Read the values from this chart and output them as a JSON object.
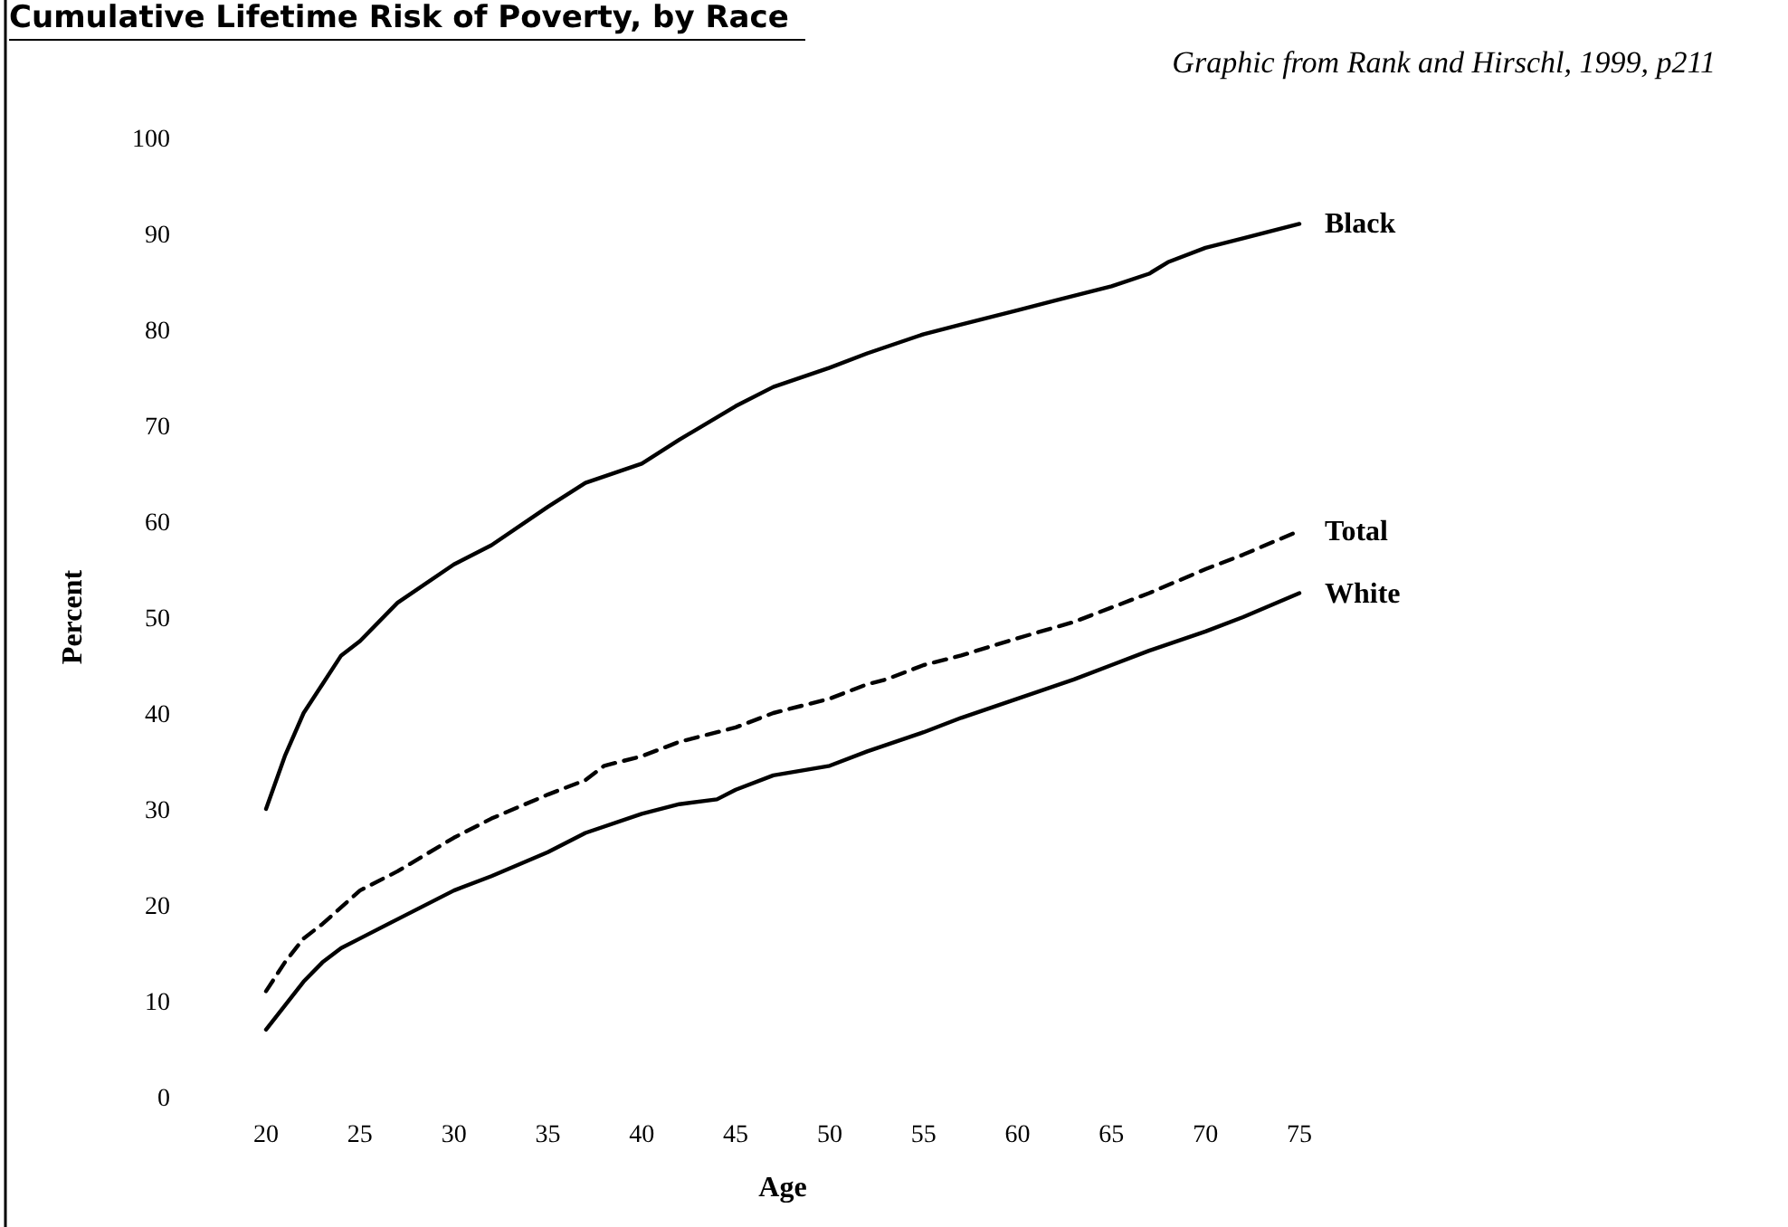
{
  "chart_data": {
    "type": "line",
    "title": "Cumulative Lifetime Risk of Poverty, by Race",
    "xlabel": "Age",
    "ylabel": "Percent",
    "annotations": [
      "Graphic from Rank and Hirschl, 1999, p211"
    ],
    "xlim": [
      20,
      75
    ],
    "xticks": [
      20,
      25,
      30,
      35,
      40,
      45,
      50,
      55,
      60,
      65,
      70,
      75
    ],
    "ylim": [
      0,
      100
    ],
    "yticks": [
      0,
      10,
      20,
      30,
      40,
      50,
      60,
      70,
      80,
      90,
      100
    ],
    "grid": false,
    "legend": false,
    "series": [
      {
        "name": "Black",
        "color": "#000000",
        "line_style": "solid",
        "x": [
          20,
          21,
          22,
          23,
          24,
          25,
          27,
          30,
          32,
          35,
          37,
          40,
          42,
          45,
          47,
          50,
          52,
          55,
          57,
          60,
          62,
          65,
          67,
          68,
          70,
          72,
          75
        ],
        "values": [
          30,
          35.5,
          40,
          43,
          46,
          47.5,
          51.5,
          55.5,
          57.5,
          61.5,
          64,
          66,
          68.5,
          72,
          74,
          76,
          77.5,
          79.5,
          80.5,
          82,
          83,
          84.5,
          85.8,
          87,
          88.5,
          89.5,
          91
        ]
      },
      {
        "name": "Total",
        "color": "#000000",
        "line_style": "dashed",
        "x": [
          20,
          21,
          22,
          23,
          25,
          27,
          30,
          32,
          35,
          37,
          38,
          40,
          42,
          45,
          47,
          50,
          52,
          53,
          55,
          57,
          60,
          63,
          65,
          67,
          70,
          72,
          75
        ],
        "values": [
          11,
          14,
          16.5,
          18,
          21.5,
          23.5,
          27,
          29,
          31.5,
          33,
          34.5,
          35.5,
          37,
          38.5,
          40,
          41.5,
          43,
          43.5,
          45,
          46,
          47.8,
          49.5,
          51,
          52.5,
          55,
          56.5,
          59
        ]
      },
      {
        "name": "White",
        "color": "#000000",
        "line_style": "solid",
        "x": [
          20,
          21,
          22,
          23,
          24,
          25,
          27,
          30,
          32,
          35,
          37,
          40,
          42,
          44,
          45,
          47,
          50,
          52,
          55,
          57,
          60,
          63,
          65,
          67,
          70,
          72,
          75
        ],
        "values": [
          7,
          9.5,
          12,
          14,
          15.5,
          16.5,
          18.5,
          21.5,
          23,
          25.5,
          27.5,
          29.5,
          30.5,
          31,
          32,
          33.5,
          34.5,
          36,
          38,
          39.5,
          41.5,
          43.5,
          45,
          46.5,
          48.5,
          50,
          52.5
        ]
      }
    ]
  }
}
